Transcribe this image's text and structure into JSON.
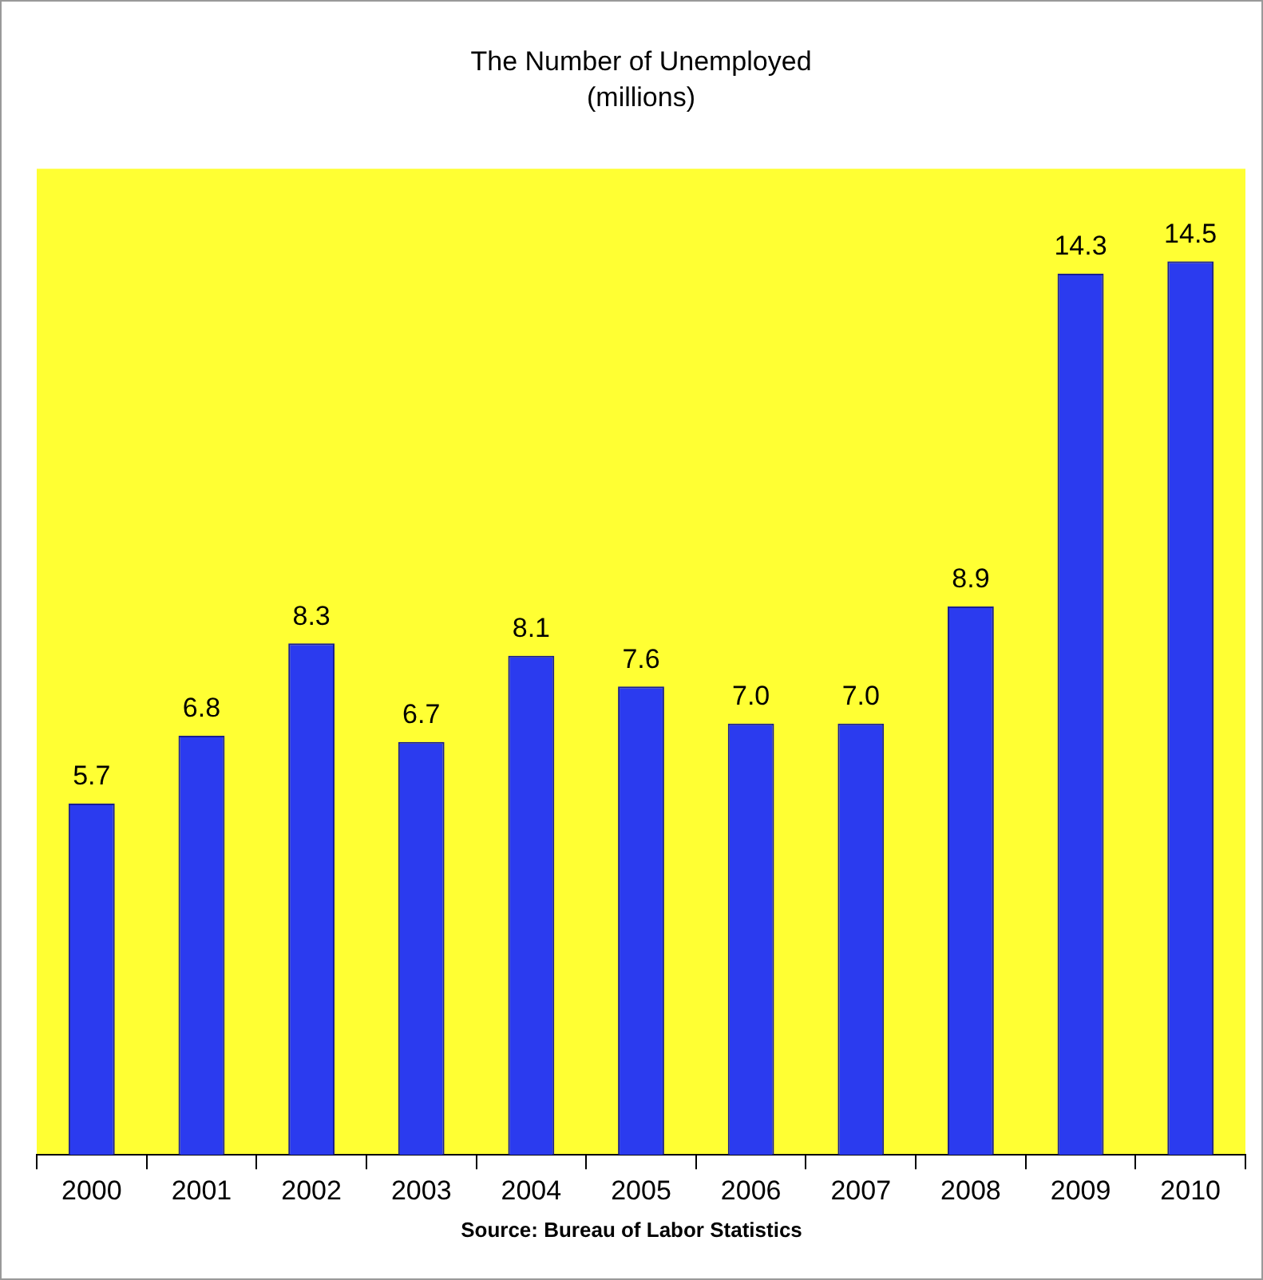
{
  "chart_data": {
    "type": "bar",
    "title": "The Number of Unemployed",
    "subtitle": "(millions)",
    "categories": [
      "2000",
      "2001",
      "2002",
      "2003",
      "2004",
      "2005",
      "2006",
      "2007",
      "2008",
      "2009",
      "2010"
    ],
    "values": [
      5.7,
      6.8,
      8.3,
      6.7,
      8.1,
      7.6,
      7.0,
      7.0,
      8.9,
      14.3,
      14.5
    ],
    "color": "#2b3bef",
    "ylim": [
      0,
      16
    ],
    "tick_labels": "x",
    "grid": false,
    "legend": false,
    "value_labels": [
      "5.7",
      "6.8",
      "8.3",
      "6.7",
      "8.1",
      "7.6",
      "7.0",
      "7.0",
      "8.9",
      "14.3",
      "14.5"
    ],
    "annotations": [
      "Source: Bureau of Labor Statistics"
    ]
  }
}
